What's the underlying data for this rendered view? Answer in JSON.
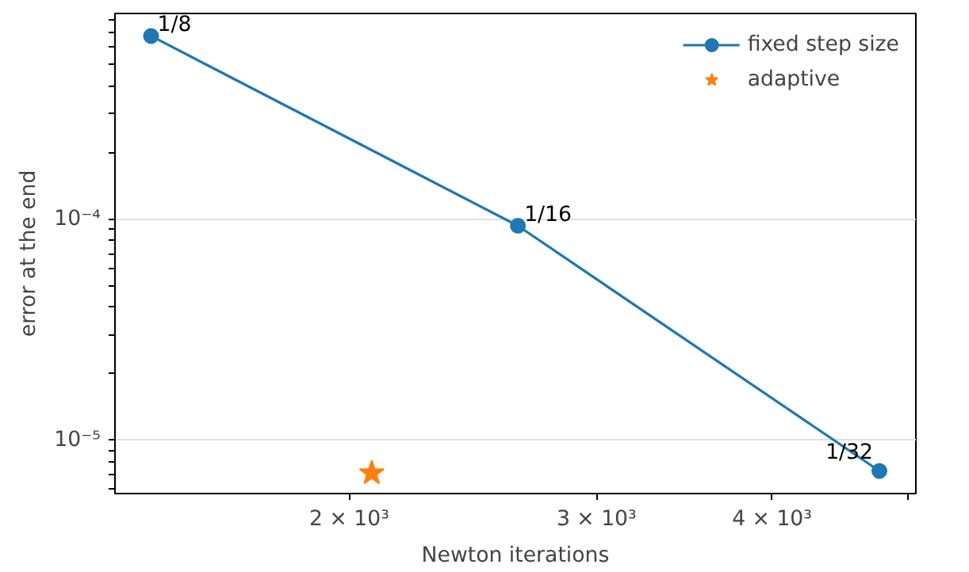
{
  "chart_data": {
    "type": "line",
    "xlabel": "Newton iterations",
    "ylabel": "error at the end",
    "log": "xy",
    "grid": "y",
    "legend": "top right",
    "xlim": [
      1362,
      5064
    ],
    "ylim": [
      5.74e-06,
      0.000855
    ],
    "xticks": [
      {
        "value": 2000,
        "label": "2 × 10³"
      },
      {
        "value": 3000,
        "label": "3 × 10³"
      },
      {
        "value": 4000,
        "label": "4 × 10³"
      },
      {
        "value": 5000,
        "label": null
      }
    ],
    "yticks": [
      {
        "value": 6e-06,
        "label": null
      },
      {
        "value": 7e-06,
        "label": null
      },
      {
        "value": 8e-06,
        "label": null
      },
      {
        "value": 9e-06,
        "label": null
      },
      {
        "value": 1e-05,
        "label": "10⁻⁵"
      },
      {
        "value": 2e-05,
        "label": null
      },
      {
        "value": 3e-05,
        "label": null
      },
      {
        "value": 4e-05,
        "label": null
      },
      {
        "value": 5e-05,
        "label": null
      },
      {
        "value": 6e-05,
        "label": null
      },
      {
        "value": 7e-05,
        "label": null
      },
      {
        "value": 8e-05,
        "label": null
      },
      {
        "value": 9e-05,
        "label": null
      },
      {
        "value": 0.0001,
        "label": "10⁻⁴"
      },
      {
        "value": 0.0002,
        "label": null
      },
      {
        "value": 0.0003,
        "label": null
      },
      {
        "value": 0.0004,
        "label": null
      },
      {
        "value": 0.0005,
        "label": null
      },
      {
        "value": 0.0006,
        "label": null
      },
      {
        "value": 0.0007,
        "label": null
      },
      {
        "value": 0.0008,
        "label": null
      }
    ],
    "series": [
      {
        "name": "fixed step size",
        "marker": "circle",
        "color": "#1f77b4",
        "x": [
          1445,
          2637,
          4770
        ],
        "values": [
          0.000676,
          9.35e-05,
          7.26e-06
        ]
      },
      {
        "name": "adaptive",
        "type": "scatter",
        "marker": "star",
        "color": "#ff7f0e",
        "x": [
          2075
        ],
        "values": [
          7.1e-06
        ]
      }
    ],
    "annotations": [
      {
        "text": "1/8",
        "x": 1445,
        "y": 0.000676
      },
      {
        "text": "1/16",
        "x": 2637,
        "y": 9.35e-05
      },
      {
        "text": "1/32",
        "x": 4770,
        "y": 7.26e-06
      }
    ]
  }
}
